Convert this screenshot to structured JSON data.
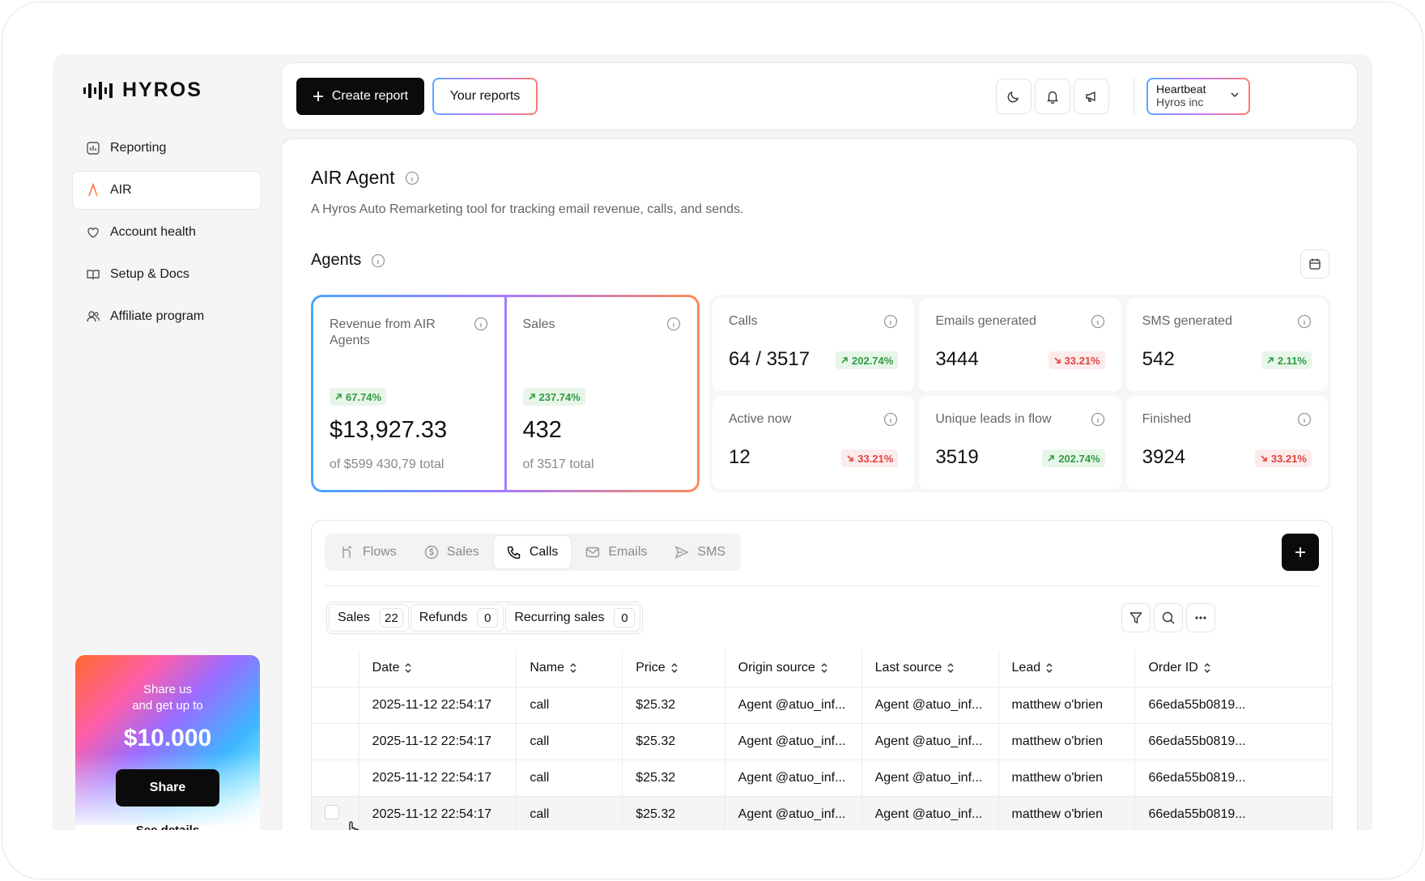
{
  "brand": {
    "name": "HYROS"
  },
  "sidebar": {
    "items": [
      {
        "label": "Reporting",
        "icon": "reporting-icon",
        "active": false
      },
      {
        "label": "AIR",
        "icon": "air-logo-icon",
        "active": true
      },
      {
        "label": "Account health",
        "icon": "heart-icon",
        "active": false
      },
      {
        "label": "Setup & Docs",
        "icon": "book-icon",
        "active": false
      },
      {
        "label": "Affiliate program",
        "icon": "users-icon",
        "active": false
      }
    ],
    "promo": {
      "line1": "Share us",
      "line2": "and get up to",
      "amount": "$10.000",
      "share_label": "Share",
      "details_label": "See details"
    }
  },
  "topbar": {
    "create_label": "Create report",
    "reports_label": "Your reports",
    "account": {
      "name": "Heartbeat",
      "org": "Hyros inc"
    }
  },
  "page": {
    "title": "AIR Agent",
    "subtitle": "A Hyros Auto Remarketing tool for tracking email revenue, calls, and sends.",
    "section": "Agents"
  },
  "featured": [
    {
      "label": "Revenue from AIR Agents",
      "change": "67.74%",
      "direction": "up",
      "value": "$13,927.33",
      "total": "of $599 430,79 total"
    },
    {
      "label": "Sales",
      "change": "237.74%",
      "direction": "up",
      "value": "432",
      "total": "of 3517 total"
    }
  ],
  "stats": [
    {
      "label": "Calls",
      "value": "64 / 3517",
      "change": "202.74%",
      "direction": "up"
    },
    {
      "label": "Emails generated",
      "value": "3444",
      "change": "33.21%",
      "direction": "down"
    },
    {
      "label": "SMS generated",
      "value": "542",
      "change": "2.11%",
      "direction": "up"
    },
    {
      "label": "Active now",
      "value": "12",
      "change": "33.21%",
      "direction": "down"
    },
    {
      "label": "Unique leads in flow",
      "value": "3519",
      "change": "202.74%",
      "direction": "up"
    },
    {
      "label": "Finished",
      "value": "3924",
      "change": "33.21%",
      "direction": "down"
    }
  ],
  "tabs": [
    {
      "label": "Flows",
      "icon": "flows-icon"
    },
    {
      "label": "Sales",
      "icon": "dollar-icon"
    },
    {
      "label": "Calls",
      "icon": "phone-icon",
      "active": true
    },
    {
      "label": "Emails",
      "icon": "mail-icon"
    },
    {
      "label": "SMS",
      "icon": "send-icon"
    }
  ],
  "segments": [
    {
      "label": "Sales",
      "count": "22"
    },
    {
      "label": "Refunds",
      "count": "0"
    },
    {
      "label": "Recurring sales",
      "count": "0"
    }
  ],
  "table": {
    "columns": [
      "Date",
      "Name",
      "Price",
      "Origin source",
      "Last source",
      "Lead",
      "Order ID"
    ],
    "rows": [
      [
        "2025-11-12 22:54:17",
        "call",
        "$25.32",
        "Agent @atuo_inf...",
        "Agent @atuo_inf...",
        "matthew o'brien",
        "66eda55b0819..."
      ],
      [
        "2025-11-12 22:54:17",
        "call",
        "$25.32",
        "Agent @atuo_inf...",
        "Agent @atuo_inf...",
        "matthew o'brien",
        "66eda55b0819..."
      ],
      [
        "2025-11-12 22:54:17",
        "call",
        "$25.32",
        "Agent @atuo_inf...",
        "Agent @atuo_inf...",
        "matthew o'brien",
        "66eda55b0819..."
      ],
      [
        "2025-11-12 22:54:17",
        "call",
        "$25.32",
        "Agent @atuo_inf...",
        "Agent @atuo_inf...",
        "matthew o'brien",
        "66eda55b0819..."
      ]
    ]
  },
  "colors": {
    "up": "#2e9b41",
    "down": "#e0443c",
    "accent_gradient_start": "#4aa5ff",
    "accent_gradient_end": "#ff8a5b"
  }
}
